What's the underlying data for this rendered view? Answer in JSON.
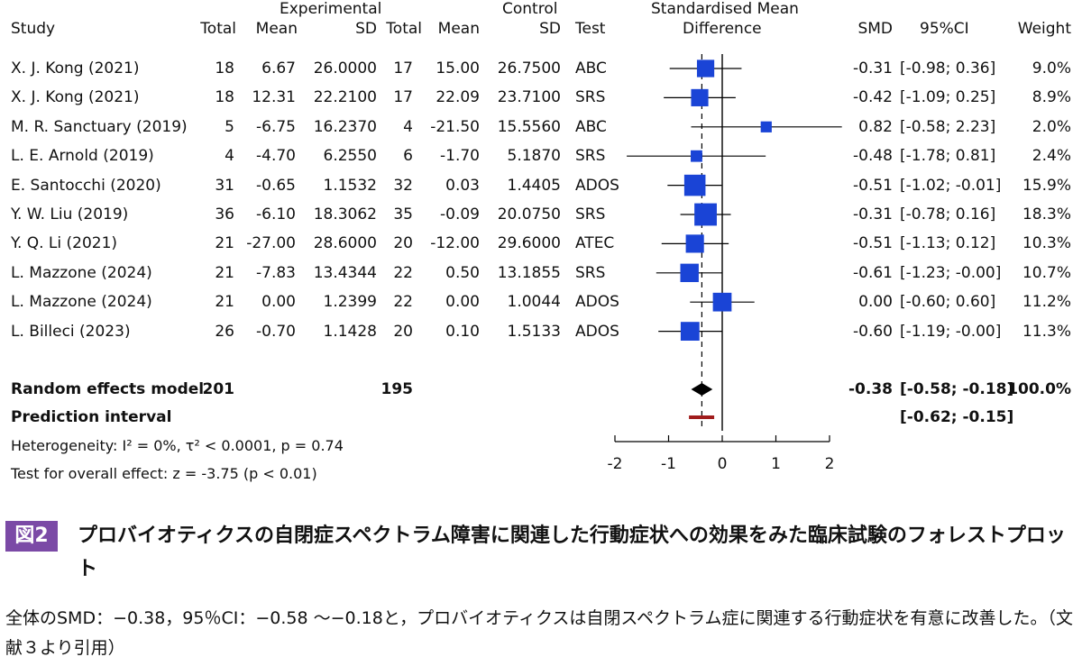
{
  "headers": {
    "study": "Study",
    "exp_group": "Experimental",
    "ctrl_group": "Control",
    "total": "Total",
    "mean": "Mean",
    "sd": "SD",
    "test": "Test",
    "smd_title_1": "Standardised Mean",
    "smd_title_2": "Difference",
    "smd": "SMD",
    "ci": "95%CI",
    "weight": "Weight"
  },
  "rows": [
    {
      "study": "X. J. Kong (2021)",
      "e_total": "18",
      "e_mean": "6.67",
      "e_sd": "26.0000",
      "c_total": "17",
      "c_mean": "15.00",
      "c_sd": "26.7500",
      "test": "ABC",
      "smd": "-0.31",
      "ci": "[-0.98; 0.36]",
      "weight": "9.0%"
    },
    {
      "study": "X. J. Kong (2021)",
      "e_total": "18",
      "e_mean": "12.31",
      "e_sd": "22.2100",
      "c_total": "17",
      "c_mean": "22.09",
      "c_sd": "23.7100",
      "test": "SRS",
      "smd": "-0.42",
      "ci": "[-1.09; 0.25]",
      "weight": "8.9%"
    },
    {
      "study": "M. R. Sanctuary (2019)",
      "e_total": "5",
      "e_mean": "-6.75",
      "e_sd": "16.2370",
      "c_total": "4",
      "c_mean": "-21.50",
      "c_sd": "15.5560",
      "test": "ABC",
      "smd": "0.82",
      "ci": "[-0.58; 2.23]",
      "weight": "2.0%"
    },
    {
      "study": "L. E. Arnold (2019)",
      "e_total": "4",
      "e_mean": "-4.70",
      "e_sd": "6.2550",
      "c_total": "6",
      "c_mean": "-1.70",
      "c_sd": "5.1870",
      "test": "SRS",
      "smd": "-0.48",
      "ci": "[-1.78; 0.81]",
      "weight": "2.4%"
    },
    {
      "study": "E. Santocchi (2020)",
      "e_total": "31",
      "e_mean": "-0.65",
      "e_sd": "1.1532",
      "c_total": "32",
      "c_mean": "0.03",
      "c_sd": "1.4405",
      "test": "ADOS",
      "smd": "-0.51",
      "ci": "[-1.02; -0.01]",
      "weight": "15.9%"
    },
    {
      "study": "Y. W. Liu (2019)",
      "e_total": "36",
      "e_mean": "-6.10",
      "e_sd": "18.3062",
      "c_total": "35",
      "c_mean": "-0.09",
      "c_sd": "20.0750",
      "test": "SRS",
      "smd": "-0.31",
      "ci": "[-0.78; 0.16]",
      "weight": "18.3%"
    },
    {
      "study": "Y. Q. Li (2021)",
      "e_total": "21",
      "e_mean": "-27.00",
      "e_sd": "28.6000",
      "c_total": "20",
      "c_mean": "-12.00",
      "c_sd": "29.6000",
      "test": "ATEC",
      "smd": "-0.51",
      "ci": "[-1.13; 0.12]",
      "weight": "10.3%"
    },
    {
      "study": "L. Mazzone (2024)",
      "e_total": "21",
      "e_mean": "-7.83",
      "e_sd": "13.4344",
      "c_total": "22",
      "c_mean": "0.50",
      "c_sd": "13.1855",
      "test": "SRS",
      "smd": "-0.61",
      "ci": "[-1.23; -0.00]",
      "weight": "10.7%"
    },
    {
      "study": "L. Mazzone (2024)",
      "e_total": "21",
      "e_mean": "0.00",
      "e_sd": "1.2399",
      "c_total": "22",
      "c_mean": "0.00",
      "c_sd": "1.0044",
      "test": "ADOS",
      "smd": "0.00",
      "ci": "[-0.60; 0.60]",
      "weight": "11.2%"
    },
    {
      "study": "L. Billeci (2023)",
      "e_total": "26",
      "e_mean": "-0.70",
      "e_sd": "1.1428",
      "c_total": "20",
      "c_mean": "0.10",
      "c_sd": "1.5133",
      "test": "ADOS",
      "smd": "-0.60",
      "ci": "[-1.19; -0.00]",
      "weight": "11.3%"
    }
  ],
  "summary": {
    "label": "Random effects model",
    "e_total": "201",
    "c_total": "195",
    "smd": "-0.38",
    "ci": "[-0.58; -0.18]",
    "weight": "100.0%"
  },
  "prediction": {
    "label": "Prediction interval",
    "ci": "[-0.62; -0.15]"
  },
  "heterogeneity": "Heterogeneity: I² = 0%, τ² < 0.0001, p = 0.74",
  "overall_effect": "Test for overall effect: z = -3.75 (p < 0.01)",
  "chart_data": {
    "type": "forest",
    "x_ticks": [
      "-2",
      "-1",
      "0",
      "1",
      "2"
    ],
    "xlim": [
      -2,
      2
    ],
    "null_line": 0,
    "studies": [
      {
        "smd": -0.31,
        "lo": -0.98,
        "hi": 0.36,
        "weight": 9.0
      },
      {
        "smd": -0.42,
        "lo": -1.09,
        "hi": 0.25,
        "weight": 8.9
      },
      {
        "smd": 0.82,
        "lo": -0.58,
        "hi": 2.23,
        "weight": 2.0
      },
      {
        "smd": -0.48,
        "lo": -1.78,
        "hi": 0.81,
        "weight": 2.4
      },
      {
        "smd": -0.51,
        "lo": -1.02,
        "hi": -0.01,
        "weight": 15.9
      },
      {
        "smd": -0.31,
        "lo": -0.78,
        "hi": 0.16,
        "weight": 18.3
      },
      {
        "smd": -0.51,
        "lo": -1.13,
        "hi": 0.12,
        "weight": 10.3
      },
      {
        "smd": -0.61,
        "lo": -1.23,
        "hi": -0.0,
        "weight": 10.7
      },
      {
        "smd": 0.0,
        "lo": -0.6,
        "hi": 0.6,
        "weight": 11.2
      },
      {
        "smd": -0.6,
        "lo": -1.19,
        "hi": -0.0,
        "weight": 11.3
      }
    ],
    "summary": {
      "smd": -0.38,
      "lo": -0.58,
      "hi": -0.18
    },
    "prediction_interval": {
      "lo": -0.62,
      "hi": -0.15
    },
    "colors": {
      "square": "#1a44d6",
      "diamond": "#000000",
      "prediction": "#a01c1c",
      "line": "#000000"
    }
  },
  "figure": {
    "badge": "図2",
    "caption": "プロバイオティクスの自閉症スペクトラム障害に関連した行動症状への効果をみた臨床試験のフォレストプロット",
    "note": "全体のSMD：−0.38，95％CI：−0.58 〜−0.18と，プロバイオティクスは自閉スペクトラム症に関連する行動症状を有意に改善した。（文献３より引用）"
  }
}
